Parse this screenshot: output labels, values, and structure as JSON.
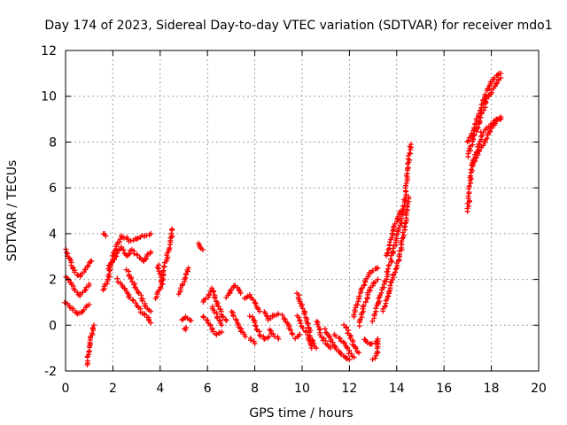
{
  "chart_data": {
    "type": "scatter",
    "title": "Day 174 of 2023, Sidereal Day-to-day VTEC variation (SDTVAR) for receiver mdo1",
    "xlabel": "GPS time / hours",
    "ylabel": "SDTVAR / TECUs",
    "xlim": [
      0,
      20
    ],
    "ylim": [
      -2,
      12
    ],
    "xticks": [
      "0",
      "2",
      "4",
      "6",
      "8",
      "10",
      "12",
      "14",
      "16",
      "18",
      "20"
    ],
    "yticks": [
      "-2",
      "0",
      "2",
      "4",
      "6",
      "8",
      "10",
      "12"
    ],
    "grid": true,
    "marker": "plus",
    "color": "#ff0000",
    "series": [
      {
        "name": "mdo1",
        "trace_segments": [
          [
            [
              0.0,
              3.3
            ],
            [
              0.2,
              2.8
            ],
            [
              0.4,
              2.3
            ],
            [
              0.6,
              2.1
            ],
            [
              0.8,
              2.4
            ],
            [
              1.0,
              2.7
            ],
            [
              1.1,
              2.8
            ]
          ],
          [
            [
              0.0,
              2.1
            ],
            [
              0.2,
              1.9
            ],
            [
              0.4,
              1.5
            ],
            [
              0.6,
              1.3
            ],
            [
              0.8,
              1.5
            ],
            [
              1.0,
              1.8
            ]
          ],
          [
            [
              0.0,
              1.0
            ],
            [
              0.2,
              0.8
            ],
            [
              0.4,
              0.6
            ],
            [
              0.6,
              0.5
            ],
            [
              0.8,
              0.7
            ],
            [
              1.0,
              0.9
            ]
          ],
          [
            [
              0.9,
              -1.7
            ],
            [
              1.0,
              -1.0
            ],
            [
              1.1,
              -0.4
            ],
            [
              1.2,
              0.0
            ]
          ],
          [
            [
              1.6,
              1.5
            ],
            [
              1.8,
              2.0
            ],
            [
              2.0,
              3.0
            ],
            [
              2.2,
              3.6
            ],
            [
              2.4,
              3.9
            ],
            [
              2.7,
              3.7
            ],
            [
              3.0,
              3.8
            ],
            [
              3.3,
              3.9
            ],
            [
              3.6,
              4.0
            ]
          ],
          [
            [
              1.8,
              2.5
            ],
            [
              2.0,
              2.8
            ],
            [
              2.2,
              3.2
            ],
            [
              2.4,
              3.4
            ],
            [
              2.6,
              3.0
            ],
            [
              2.8,
              3.3
            ],
            [
              3.0,
              3.1
            ],
            [
              3.3,
              2.8
            ],
            [
              3.6,
              3.2
            ]
          ],
          [
            [
              2.2,
              2.0
            ],
            [
              2.4,
              1.7
            ],
            [
              2.6,
              1.4
            ],
            [
              2.8,
              1.1
            ],
            [
              3.0,
              0.9
            ],
            [
              3.2,
              0.6
            ],
            [
              3.5,
              0.3
            ],
            [
              3.6,
              0.1
            ]
          ],
          [
            [
              2.6,
              2.4
            ],
            [
              2.8,
              2.0
            ],
            [
              3.0,
              1.6
            ],
            [
              3.2,
              1.2
            ],
            [
              3.4,
              0.8
            ],
            [
              3.6,
              0.6
            ]
          ],
          [
            [
              1.6,
              4.0
            ],
            [
              1.7,
              3.9
            ]
          ],
          [
            [
              3.8,
              1.2
            ],
            [
              4.0,
              1.6
            ],
            [
              4.2,
              2.6
            ],
            [
              4.4,
              3.5
            ],
            [
              4.5,
              4.2
            ]
          ],
          [
            [
              3.9,
              2.6
            ],
            [
              4.0,
              2.2
            ],
            [
              4.1,
              1.8
            ]
          ],
          [
            [
              4.8,
              1.4
            ],
            [
              5.0,
              1.9
            ],
            [
              5.2,
              2.5
            ]
          ],
          [
            [
              5.6,
              3.6
            ],
            [
              5.8,
              3.3
            ]
          ],
          [
            [
              4.9,
              0.2
            ],
            [
              5.1,
              0.4
            ],
            [
              5.3,
              0.2
            ]
          ],
          [
            [
              5.0,
              -0.2
            ],
            [
              5.1,
              -0.1
            ]
          ],
          [
            [
              5.8,
              1.0
            ],
            [
              6.0,
              1.2
            ],
            [
              6.2,
              1.6
            ],
            [
              6.4,
              1.0
            ],
            [
              6.6,
              0.4
            ],
            [
              6.8,
              0.2
            ]
          ],
          [
            [
              5.8,
              0.4
            ],
            [
              6.0,
              0.2
            ],
            [
              6.2,
              -0.2
            ],
            [
              6.4,
              -0.4
            ],
            [
              6.6,
              -0.3
            ]
          ],
          [
            [
              6.2,
              0.8
            ],
            [
              6.4,
              0.4
            ],
            [
              6.6,
              0.0
            ]
          ],
          [
            [
              6.8,
              1.2
            ],
            [
              7.0,
              1.6
            ],
            [
              7.2,
              1.7
            ],
            [
              7.4,
              1.4
            ]
          ],
          [
            [
              7.0,
              0.6
            ],
            [
              7.2,
              0.2
            ],
            [
              7.4,
              -0.2
            ],
            [
              7.6,
              -0.5
            ]
          ],
          [
            [
              7.6,
              1.2
            ],
            [
              7.8,
              1.3
            ],
            [
              8.0,
              1.0
            ],
            [
              8.2,
              0.6
            ]
          ],
          [
            [
              7.8,
              0.4
            ],
            [
              8.0,
              0.2
            ],
            [
              8.2,
              -0.4
            ],
            [
              8.4,
              -0.6
            ],
            [
              8.6,
              -0.5
            ]
          ],
          [
            [
              7.8,
              -0.6
            ],
            [
              8.0,
              -0.8
            ]
          ],
          [
            [
              8.4,
              0.6
            ],
            [
              8.6,
              0.2
            ],
            [
              8.8,
              0.4
            ],
            [
              9.0,
              0.5
            ]
          ],
          [
            [
              8.6,
              -0.2
            ],
            [
              8.8,
              -0.4
            ],
            [
              9.0,
              -0.6
            ]
          ],
          [
            [
              9.2,
              0.4
            ],
            [
              9.4,
              0.0
            ],
            [
              9.6,
              -0.4
            ]
          ],
          [
            [
              9.8,
              1.4
            ],
            [
              10.0,
              0.8
            ],
            [
              10.2,
              0.2
            ],
            [
              10.4,
              -0.6
            ],
            [
              10.6,
              -1.0
            ]
          ],
          [
            [
              9.8,
              0.4
            ],
            [
              10.0,
              0.0
            ],
            [
              10.2,
              -0.4
            ],
            [
              10.4,
              -1.0
            ]
          ],
          [
            [
              9.7,
              -0.6
            ],
            [
              9.9,
              -0.4
            ]
          ],
          [
            [
              10.6,
              0.2
            ],
            [
              10.8,
              -0.4
            ],
            [
              11.0,
              -0.8
            ],
            [
              11.2,
              -1.0
            ]
          ],
          [
            [
              11.0,
              -0.2
            ],
            [
              11.2,
              -0.6
            ],
            [
              11.4,
              -1.0
            ],
            [
              11.6,
              -1.2
            ]
          ],
          [
            [
              11.4,
              -0.4
            ],
            [
              11.6,
              -0.6
            ],
            [
              11.8,
              -0.8
            ],
            [
              12.0,
              -1.2
            ],
            [
              12.2,
              -1.4
            ]
          ],
          [
            [
              11.6,
              -1.2
            ],
            [
              11.8,
              -1.4
            ],
            [
              12.0,
              -1.5
            ]
          ],
          [
            [
              11.8,
              0.0
            ],
            [
              12.0,
              -0.4
            ],
            [
              12.2,
              -0.9
            ],
            [
              12.4,
              -1.2
            ]
          ],
          [
            [
              12.2,
              0.4
            ],
            [
              12.4,
              1.2
            ],
            [
              12.6,
              1.8
            ],
            [
              12.8,
              2.2
            ],
            [
              13.0,
              2.4
            ],
            [
              13.2,
              2.5
            ]
          ],
          [
            [
              12.4,
              0.0
            ],
            [
              12.6,
              0.8
            ],
            [
              12.8,
              1.4
            ],
            [
              13.0,
              1.8
            ],
            [
              13.2,
              2.0
            ]
          ],
          [
            [
              12.6,
              -0.6
            ],
            [
              12.8,
              -0.8
            ],
            [
              13.0,
              -0.8
            ],
            [
              13.2,
              -0.7
            ]
          ],
          [
            [
              13.0,
              -1.5
            ],
            [
              13.2,
              -1.2
            ],
            [
              13.2,
              -0.6
            ]
          ],
          [
            [
              13.0,
              0.2
            ],
            [
              13.2,
              1.0
            ],
            [
              13.4,
              1.6
            ],
            [
              13.6,
              2.2
            ],
            [
              13.8,
              3.0
            ],
            [
              14.0,
              3.8
            ],
            [
              14.2,
              4.6
            ],
            [
              14.4,
              6.0
            ],
            [
              14.5,
              7.2
            ],
            [
              14.6,
              7.9
            ]
          ],
          [
            [
              13.4,
              0.6
            ],
            [
              13.6,
              1.2
            ],
            [
              13.8,
              2.0
            ],
            [
              14.0,
              2.6
            ],
            [
              14.2,
              3.4
            ],
            [
              14.4,
              4.8
            ],
            [
              14.5,
              5.6
            ]
          ],
          [
            [
              13.6,
              3.0
            ],
            [
              13.8,
              4.0
            ],
            [
              14.0,
              4.6
            ],
            [
              14.2,
              5.0
            ]
          ],
          [
            [
              17.0,
              5.0
            ],
            [
              17.1,
              6.2
            ],
            [
              17.2,
              7.0
            ],
            [
              17.4,
              7.4
            ],
            [
              17.6,
              7.8
            ],
            [
              17.8,
              8.2
            ],
            [
              18.0,
              8.6
            ],
            [
              18.2,
              8.9
            ],
            [
              18.4,
              9.1
            ]
          ],
          [
            [
              17.0,
              7.4
            ],
            [
              17.2,
              8.0
            ],
            [
              17.4,
              8.6
            ],
            [
              17.6,
              9.2
            ],
            [
              17.8,
              9.8
            ],
            [
              18.0,
              10.2
            ],
            [
              18.2,
              10.6
            ],
            [
              18.4,
              10.8
            ]
          ],
          [
            [
              17.0,
              8.0
            ],
            [
              17.2,
              8.4
            ],
            [
              17.4,
              9.0
            ],
            [
              17.6,
              9.6
            ],
            [
              17.8,
              10.2
            ],
            [
              18.0,
              10.6
            ],
            [
              18.2,
              10.9
            ],
            [
              18.4,
              11.0
            ]
          ],
          [
            [
              17.2,
              7.0
            ],
            [
              17.4,
              7.6
            ],
            [
              17.6,
              8.4
            ],
            [
              17.8,
              8.6
            ],
            [
              18.0,
              8.8
            ],
            [
              18.2,
              9.0
            ],
            [
              18.4,
              9.0
            ]
          ]
        ]
      }
    ]
  }
}
